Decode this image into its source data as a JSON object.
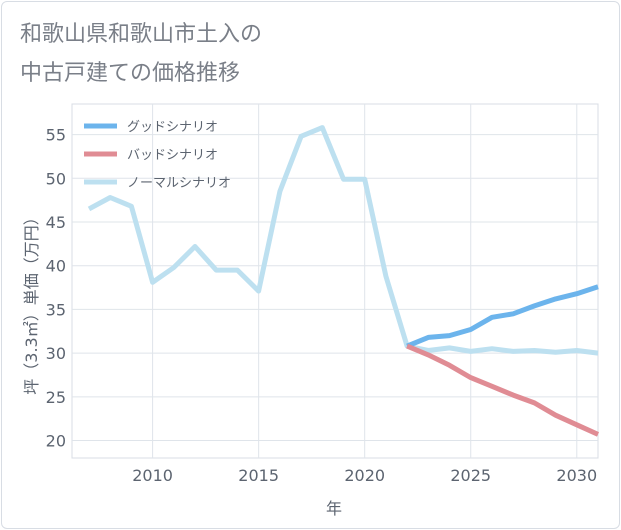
{
  "title_lines": [
    "和歌山県和歌山市土入の",
    "中古戸建ての価格推移"
  ],
  "chart_data": {
    "type": "line",
    "title": "和歌山県和歌山市土入の中古戸建ての価格推移",
    "xlabel": "年",
    "ylabel": "坪（3.3㎡）単価（万円）",
    "xlim": [
      2006.2,
      2031
    ],
    "ylim": [
      18,
      58.5
    ],
    "xticks": [
      2010,
      2015,
      2020,
      2025,
      2030
    ],
    "yticks": [
      20,
      25,
      30,
      35,
      40,
      45,
      50,
      55
    ],
    "grid": true,
    "legend_position": "top-left",
    "series": [
      {
        "name": "グッドシナリオ",
        "color": "#6cb4ec",
        "points": [
          [
            2022,
            30.8
          ],
          [
            2023,
            31.8
          ],
          [
            2024,
            32.0
          ],
          [
            2025,
            32.7
          ],
          [
            2026,
            34.1
          ],
          [
            2027,
            34.5
          ],
          [
            2028,
            35.4
          ],
          [
            2029,
            36.2
          ],
          [
            2030,
            36.8
          ],
          [
            2031,
            37.6
          ]
        ]
      },
      {
        "name": "バッドシナリオ",
        "color": "#e08c94",
        "points": [
          [
            2022,
            30.8
          ],
          [
            2023,
            29.8
          ],
          [
            2024,
            28.6
          ],
          [
            2025,
            27.2
          ],
          [
            2026,
            26.2
          ],
          [
            2027,
            25.2
          ],
          [
            2028,
            24.3
          ],
          [
            2029,
            22.9
          ],
          [
            2030,
            21.8
          ],
          [
            2031,
            20.7
          ]
        ]
      },
      {
        "name": "ノーマルシナリオ",
        "color": "#bde0f0",
        "points": [
          [
            2007,
            46.5
          ],
          [
            2008,
            47.8
          ],
          [
            2009,
            46.8
          ],
          [
            2010,
            38.1
          ],
          [
            2011,
            39.8
          ],
          [
            2012,
            42.2
          ],
          [
            2013,
            39.5
          ],
          [
            2014,
            39.5
          ],
          [
            2015,
            37.1
          ],
          [
            2016,
            48.5
          ],
          [
            2017,
            54.8
          ],
          [
            2018,
            55.8
          ],
          [
            2019,
            49.9
          ],
          [
            2020,
            49.9
          ],
          [
            2021,
            38.8
          ],
          [
            2022,
            30.8
          ],
          [
            2023,
            30.3
          ],
          [
            2024,
            30.6
          ],
          [
            2025,
            30.2
          ],
          [
            2026,
            30.5
          ],
          [
            2027,
            30.2
          ],
          [
            2028,
            30.3
          ],
          [
            2029,
            30.1
          ],
          [
            2030,
            30.3
          ],
          [
            2031,
            30.0
          ]
        ]
      }
    ]
  }
}
